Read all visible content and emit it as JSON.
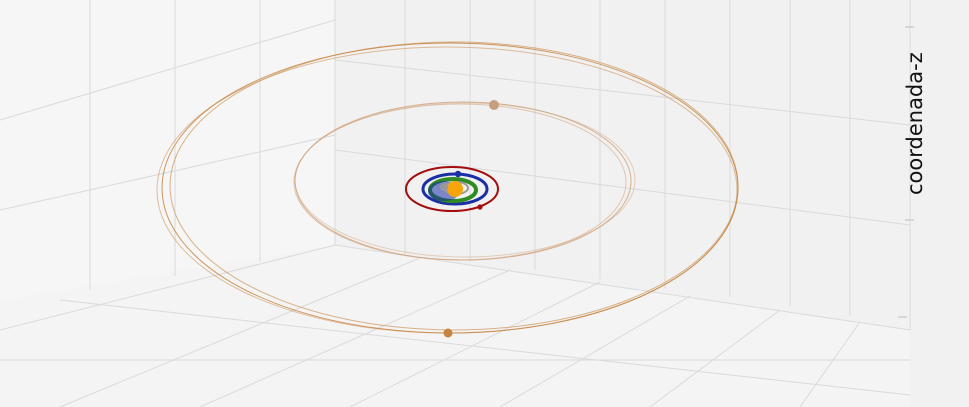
{
  "plot": {
    "z_axis_title": "coordenada-z"
  },
  "colors": {
    "sun": "#f5a50a",
    "mercury": "#9a9a9a",
    "venus": "#2e8b22",
    "earth": "#1a2ea6",
    "mars": "#a30d0d",
    "jupiter": "#c6a07e",
    "saturn": "#c58440",
    "grid": "#d8d8d8",
    "pane": "#efefef"
  },
  "bodies": [
    {
      "name": "sun",
      "color_key": "sun"
    },
    {
      "name": "mercury",
      "color_key": "mercury"
    },
    {
      "name": "venus",
      "color_key": "venus"
    },
    {
      "name": "earth",
      "color_key": "earth"
    },
    {
      "name": "mars",
      "color_key": "mars"
    },
    {
      "name": "jupiter",
      "color_key": "jupiter"
    },
    {
      "name": "saturn",
      "color_key": "saturn"
    }
  ]
}
